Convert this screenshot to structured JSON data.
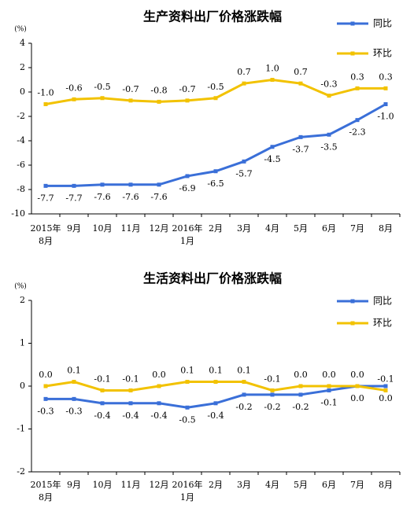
{
  "chart_data": [
    {
      "type": "line",
      "title": "生产资料出厂价格涨跌幅",
      "y_unit": "(%)",
      "categories": [
        "2015年\n8月",
        "9月",
        "10月",
        "11月",
        "12月",
        "2016年\n1月",
        "2月",
        "3月",
        "4月",
        "5月",
        "6月",
        "7月",
        "8月"
      ],
      "series": [
        {
          "name": "同比",
          "color": "#3a6fd8",
          "values": [
            -7.7,
            -7.7,
            -7.6,
            -7.6,
            -7.6,
            -6.9,
            -6.5,
            -5.7,
            -4.5,
            -3.7,
            -3.5,
            -2.3,
            -1.0
          ],
          "value_labels": [
            "-7.7",
            "-7.7",
            "-7.6",
            "-7.6",
            "-7.6",
            "-6.9",
            "-6.5",
            "-5.7",
            "-4.5",
            "-3.7",
            "-3.5",
            "-2.3",
            "-1.0"
          ]
        },
        {
          "name": "环比",
          "color": "#f2c200",
          "values": [
            -1.0,
            -0.6,
            -0.5,
            -0.7,
            -0.8,
            -0.7,
            -0.5,
            0.7,
            1.0,
            0.7,
            -0.3,
            0.3,
            0.3
          ],
          "value_labels": [
            "-1.0",
            "-0.6",
            "-0.5",
            "-0.7",
            "-0.8",
            "-0.7",
            "-0.5",
            "0.7",
            "1.0",
            "0.7",
            "-0.3",
            "0.3",
            "0.3"
          ]
        }
      ],
      "ylim": [
        -10,
        4
      ],
      "yticks": [
        -10,
        -8,
        -6,
        -4,
        -2,
        0,
        2,
        4
      ],
      "grid": false,
      "legend": "upper right"
    },
    {
      "type": "line",
      "title": "生活资料出厂价格涨跌幅",
      "y_unit": "(%)",
      "categories": [
        "2015年\n8月",
        "9月",
        "10月",
        "11月",
        "12月",
        "2016年\n1月",
        "2月",
        "3月",
        "4月",
        "5月",
        "6月",
        "7月",
        "8月"
      ],
      "series": [
        {
          "name": "同比",
          "color": "#3a6fd8",
          "values": [
            -0.3,
            -0.3,
            -0.4,
            -0.4,
            -0.4,
            -0.5,
            -0.4,
            -0.2,
            -0.2,
            -0.2,
            -0.1,
            0.0,
            0.0
          ],
          "value_labels": [
            "-0.3",
            "-0.3",
            "-0.4",
            "-0.4",
            "-0.4",
            "-0.5",
            "-0.4",
            "-0.2",
            "-0.2",
            "-0.2",
            "-0.1",
            "0.0",
            "0.0"
          ]
        },
        {
          "name": "环比",
          "color": "#f2c200",
          "values": [
            0.0,
            0.1,
            -0.1,
            -0.1,
            0.0,
            0.1,
            0.1,
            0.1,
            -0.1,
            0.0,
            0.0,
            0.0,
            -0.1
          ],
          "value_labels": [
            "0.0",
            "0.1",
            "-0.1",
            "-0.1",
            "0.0",
            "0.1",
            "0.1",
            "0.1",
            "-0.1",
            "0.0",
            "0.0",
            "0.0",
            "-0.1"
          ]
        }
      ],
      "ylim": [
        -2,
        2
      ],
      "yticks": [
        -2,
        -1,
        0,
        1,
        2
      ],
      "grid": false,
      "legend": "upper right"
    }
  ]
}
